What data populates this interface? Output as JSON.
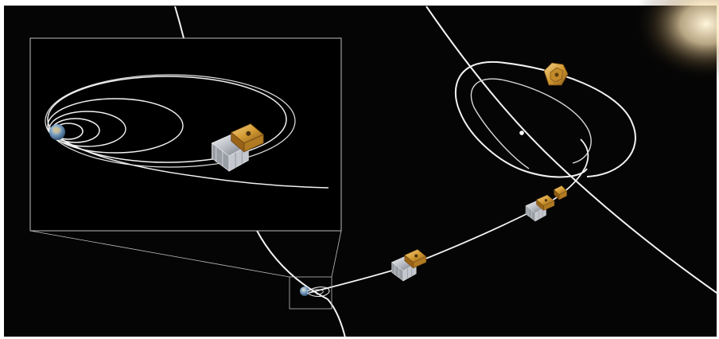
{
  "diagram": {
    "background_color": "#050505",
    "frame_color": "#ffffff",
    "orbit_color": "#f2f2f2",
    "inset_border_color": "#bdbdbd",
    "sun_glow_color": "#fff2cf",
    "spacecraft_body_color": "#c9ccd3",
    "solar_panel_color": "#d9a640",
    "earth_ocean_color": "#5b86b0",
    "earth_land_color": "#c9b98a",
    "labels": []
  }
}
